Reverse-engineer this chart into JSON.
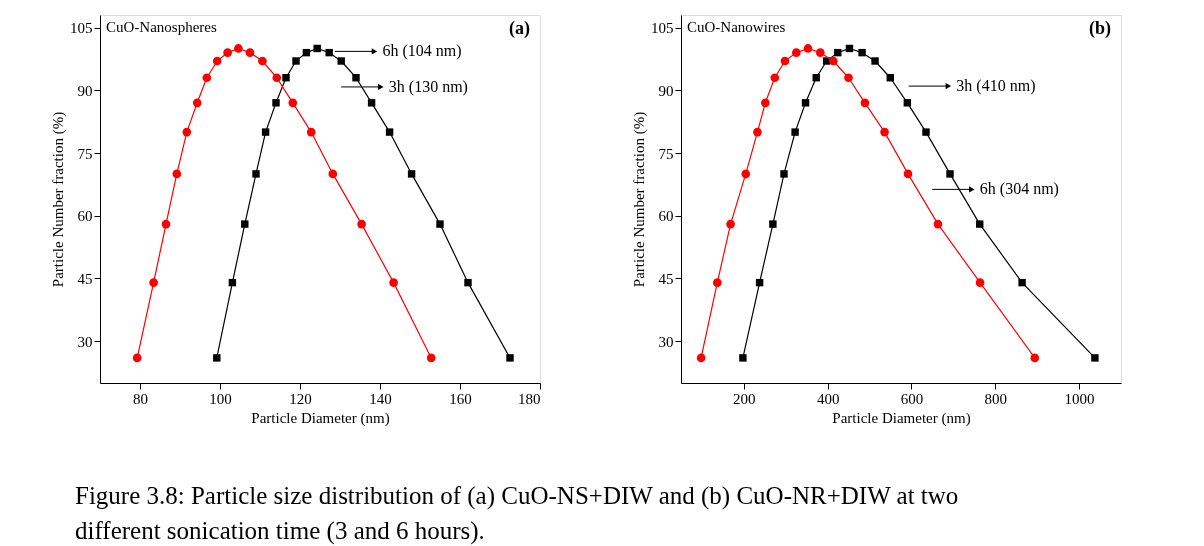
{
  "chart_data": [
    {
      "type": "line",
      "title": "CuO-Nanospheres",
      "xlabel": "Particle Diameter (nm)",
      "ylabel": "Particle Number fraction (%)",
      "xlim": [
        70,
        180
      ],
      "xticks": [
        80,
        100,
        120,
        140,
        160,
        180
      ],
      "ylim": [
        20,
        108
      ],
      "yticks": [
        30,
        45,
        60,
        75,
        90,
        105
      ],
      "grid": false,
      "series": [
        {
          "color": "#000000",
          "marker": "square",
          "x": [
            99.2,
            103.1,
            106.2,
            109.0,
            111.4,
            114.0,
            116.5,
            119.0,
            121.6,
            124.3,
            127.3,
            130.3,
            134.0,
            137.9,
            142.4,
            147.9,
            155.0,
            162.0,
            172.5
          ],
          "values": [
            26,
            44,
            58,
            70,
            80,
            87,
            93,
            97,
            99,
            100,
            99,
            97,
            93,
            87,
            80,
            70,
            58,
            44,
            26
          ]
        },
        {
          "color": "#ff0000",
          "marker": "circle",
          "x": [
            79.3,
            83.4,
            86.5,
            89.2,
            91.7,
            94.3,
            96.7,
            99.3,
            101.9,
            104.6,
            107.5,
            110.6,
            114.2,
            118.2,
            122.8,
            128.2,
            135.4,
            143.4,
            152.8
          ],
          "values": [
            26,
            44,
            58,
            70,
            80,
            87,
            93,
            97,
            99,
            100,
            99,
            97,
            93,
            87,
            80,
            70,
            58,
            44,
            26
          ]
        }
      ],
      "annotations": [
        "(a)",
        "Figure 3.8: Particle size distribution of (a) CuO-NS+DIW and (b) CuO-NR+DIW at two different sonication time (3 and 6 hours).",
        {
          "text": "6h (104 nm)",
          "x": 138.6,
          "y": 99.3
        },
        {
          "text": "3h (130 nm)",
          "x": 140.2,
          "y": 90.8
        }
      ]
    },
    {
      "type": "line",
      "title": "CuO-Nanowires",
      "xlabel": "Particle Diameter (nm)",
      "ylabel": "Particle Number fraction (%)",
      "xlim": [
        50,
        1100
      ],
      "xticks": [
        200,
        400,
        600,
        800,
        1000
      ],
      "ylim": [
        20,
        108
      ],
      "yticks": [
        30,
        45,
        60,
        75,
        90,
        105
      ],
      "grid": false,
      "series": [
        {
          "color": "#000000",
          "marker": "square",
          "x": [
            197.7,
            237.6,
            269.3,
            295.8,
            322.3,
            347.2,
            372.7,
            397.6,
            424.1,
            452.0,
            482.1,
            513.1,
            549.4,
            590.1,
            634.7,
            692.0,
            762.9,
            864.0,
            1037.7
          ],
          "values": [
            26,
            44,
            58,
            70,
            80,
            87,
            93,
            97,
            99,
            100,
            99,
            97,
            93,
            87,
            80,
            70,
            58,
            44,
            26
          ]
        },
        {
          "color": "#ff0000",
          "marker": "circle",
          "x": [
            98.0,
            136.6,
            168.3,
            204.5,
            232.4,
            251.2,
            273.8,
            298.0,
            325.2,
            353.1,
            382.5,
            413.5,
            449.7,
            488.9,
            535.8,
            591.7,
            663.2,
            763.7,
            894.2
          ],
          "values": [
            26,
            44,
            58,
            70,
            80,
            87,
            93,
            97,
            99,
            100,
            99,
            97,
            93,
            87,
            80,
            70,
            58,
            44,
            26
          ]
        }
      ],
      "annotations": [
        "(b)",
        {
          "text": "3h (410 nm)",
          "x": 688,
          "y": 91
        },
        {
          "text": "6h (304 nm)",
          "x": 744,
          "y": 66.3
        }
      ]
    }
  ]
}
